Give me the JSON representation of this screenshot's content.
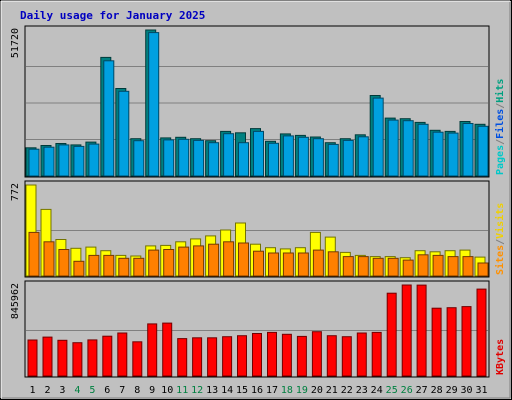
{
  "chart_data": {
    "type": "bar",
    "title": "Daily usage for January 2025",
    "days": [
      "1",
      "2",
      "3",
      "4",
      "5",
      "6",
      "7",
      "8",
      "9",
      "10",
      "11",
      "12",
      "13",
      "14",
      "15",
      "16",
      "17",
      "18",
      "19",
      "20",
      "21",
      "22",
      "23",
      "24",
      "25",
      "26",
      "27",
      "28",
      "29",
      "30",
      "31"
    ],
    "weekend_days": [
      "4",
      "5",
      "11",
      "12",
      "18",
      "19",
      "25",
      "26"
    ],
    "panels": [
      {
        "id": "hits",
        "max_label": "51720",
        "max": 51720,
        "legend": [
          "Pages",
          "/",
          "Files",
          "/",
          "Hits"
        ],
        "legend_colors": [
          "#00c8c8",
          "#808080",
          "#0050e0",
          "#808080",
          "#00a080"
        ],
        "series": [
          {
            "name": "Hits",
            "color": "#008080",
            "values": [
              10000,
              10800,
              11500,
              11000,
              12000,
              42000,
              31000,
              13200,
              51720,
              13500,
              13700,
              13200,
              12500,
              15800,
              15300,
              16800,
              12300,
              14900,
              14400,
              13800,
              11800,
              13200,
              14600,
              28500,
              20500,
              20300,
              19000,
              16200,
              15800,
              19300,
              18300
            ]
          },
          {
            "name": "Files",
            "color": "#00a0e0",
            "values": [
              9500,
              10200,
              11000,
              10500,
              11300,
              40800,
              30000,
              12500,
              50800,
              12800,
              13000,
              12600,
              11800,
              15000,
              11800,
              15800,
              11600,
              14200,
              13700,
              13200,
              11200,
              12600,
              13900,
              27600,
              19800,
              19600,
              18300,
              15500,
              15200,
              18600,
              17600
            ]
          }
        ]
      },
      {
        "id": "visits",
        "max_label": "772",
        "max": 772,
        "legend": [
          "Sites",
          "/",
          "Visits"
        ],
        "legend_colors": [
          "#ff9000",
          "#808080",
          "#f0d000"
        ],
        "series": [
          {
            "name": "Visits",
            "color": "#ffff00",
            "values": [
              772,
              565,
              310,
              235,
              245,
              215,
              175,
              170,
              255,
              260,
              290,
              315,
              340,
              390,
              450,
              270,
              240,
              230,
              240,
              370,
              330,
              200,
              175,
              165,
              165,
              155,
              215,
              205,
              215,
              220,
              160
            ]
          },
          {
            "name": "Sites",
            "color": "#ff8000",
            "values": [
              370,
              290,
              225,
              125,
              175,
              175,
              150,
              150,
              220,
              225,
              245,
              255,
              270,
              290,
              280,
              210,
              195,
              195,
              195,
              220,
              205,
              165,
              165,
              150,
              150,
              135,
              180,
              175,
              165,
              165,
              110
            ]
          }
        ]
      },
      {
        "id": "kbytes",
        "max_label": "845962",
        "max": 845962,
        "legend": [
          "KBytes"
        ],
        "legend_colors": [
          "#e00000"
        ],
        "series": [
          {
            "name": "KBytes",
            "color": "#ff0000",
            "values": [
              335000,
              362000,
              332000,
              310000,
              336000,
              370000,
              400000,
              318000,
              484000,
              492000,
              348000,
              355000,
              355000,
              365000,
              375000,
              395000,
              405000,
              388000,
              368000,
              412000,
              375000,
              365000,
              400000,
              405000,
              770000,
              845962,
              845000,
              630000,
              635000,
              645000,
              808000
            ]
          }
        ]
      }
    ]
  }
}
